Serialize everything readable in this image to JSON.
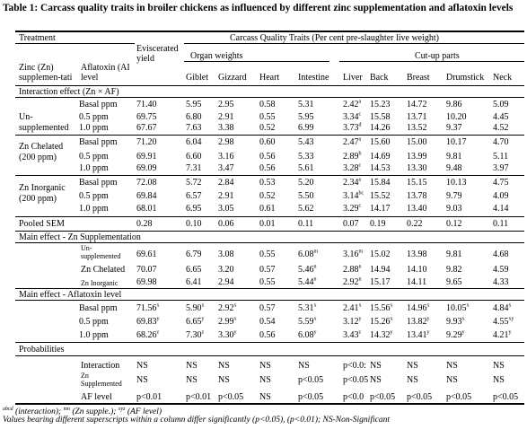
{
  "title": "Table 1: Carcass quality traits in broiler chickens as influenced by different zinc supplementation and aflatoxin levels",
  "head": {
    "treatment": "Treatment",
    "zinc_line1": "Zinc (Zn)",
    "zinc_line2": "supplemen-tati",
    "afla_line1": "Aflatoxin (AI",
    "afla_line2": "level",
    "evisc_line1": "Eviscerated",
    "evisc_line2": "yield",
    "cqt": "Carcass Quality Traits (Per cent pre-slaughter live weight)",
    "organ": "Organ weights",
    "cutup": "Cut-up parts",
    "giblet": "Giblet",
    "gizzard": "Gizzard",
    "heart": "Heart",
    "intestine": "Intestine",
    "liver": "Liver",
    "back": "Back",
    "breast": "Breast",
    "drumstick": "Drumstick",
    "neck": "Neck"
  },
  "section_interaction": "Interaction effect (Zn × AF)",
  "groups": [
    {
      "label1": "",
      "label2": "Un-",
      "label3": "supplemented"
    },
    {
      "label1": "Zn Chelated",
      "label2": "(200 ppm)",
      "label3": ""
    },
    {
      "label1": "Zn Inorganic",
      "label2": "(200 ppm)",
      "label3": ""
    }
  ],
  "interaction_rows": [
    {
      "af": "Basal ppm",
      "ey": "71.40",
      "giblet": "5.95",
      "gizzard": "2.95",
      "heart": "0.58",
      "intestine": "5.31",
      "liver": "2.42",
      "liver_sup": "a",
      "back": "15.23",
      "breast": "14.72",
      "drumstick": "9.86",
      "neck": "5.09"
    },
    {
      "af": "0.5 ppm",
      "ey": "69.75",
      "giblet": "6.80",
      "gizzard": "2.91",
      "heart": "0.55",
      "intestine": "5.95",
      "liver": "3.34",
      "liver_sup": "c",
      "back": "15.58",
      "breast": "13.71",
      "drumstick": "10.20",
      "neck": "4.45"
    },
    {
      "af": "1.0 ppm",
      "ey": "67.67",
      "giblet": "7.63",
      "gizzard": "3.38",
      "heart": "0.52",
      "intestine": "6.99",
      "liver": "3.73",
      "liver_sup": "d",
      "back": "14.26",
      "breast": "13.52",
      "drumstick": "9.37",
      "neck": "4.52"
    },
    {
      "af": "Basal ppm",
      "ey": "71.20",
      "giblet": "6.04",
      "gizzard": "2.98",
      "heart": "0.60",
      "intestine": "5.43",
      "liver": "2.47",
      "liver_sup": "a",
      "back": "15.60",
      "breast": "15.00",
      "drumstick": "10.17",
      "neck": "4.70"
    },
    {
      "af": "0.5 ppm",
      "ey": "69.91",
      "giblet": "6.60",
      "gizzard": "3.16",
      "heart": "0.56",
      "intestine": "5.33",
      "liver": "2.89",
      "liver_sup": "b",
      "back": "14.69",
      "breast": "13.99",
      "drumstick": "9.81",
      "neck": "5.11"
    },
    {
      "af": "1.0 ppm",
      "ey": "69.09",
      "giblet": "7.31",
      "gizzard": "3.47",
      "heart": "0.56",
      "intestine": "5.61",
      "liver": "3.28",
      "liver_sup": "c",
      "back": "14.53",
      "breast": "13.30",
      "drumstick": "9.48",
      "neck": "3.97"
    },
    {
      "af": "Basal ppm",
      "ey": "72.08",
      "giblet": "5.72",
      "gizzard": "2.84",
      "heart": "0.53",
      "intestine": "5.20",
      "liver": "2.34",
      "liver_sup": "a",
      "back": "15.84",
      "breast": "15.15",
      "drumstick": "10.13",
      "neck": "4.75"
    },
    {
      "af": "0.5 ppm",
      "ey": "69.84",
      "giblet": "6.57",
      "gizzard": "2.91",
      "heart": "0.52",
      "intestine": "5.50",
      "liver": "3.14",
      "liver_sup": "bc",
      "back": "15.52",
      "breast": "13.78",
      "drumstick": "9.79",
      "neck": "4.09"
    },
    {
      "af": "1.0 ppm",
      "ey": "68.01",
      "giblet": "6.95",
      "gizzard": "3.05",
      "heart": "0.61",
      "intestine": "5.62",
      "liver": "3.29",
      "liver_sup": "c",
      "back": "14.17",
      "breast": "13.40",
      "drumstick": "9.03",
      "neck": "4.14"
    }
  ],
  "pooled": {
    "label": "Pooled SEM",
    "ey": "0.28",
    "giblet": "0.10",
    "gizzard": "0.06",
    "heart": "0.01",
    "intestine": "0.11",
    "liver": "0.07",
    "back": "0.19",
    "breast": "0.22",
    "drumstick": "0.12",
    "neck": "0.11"
  },
  "section_zn": "Main effect - Zn Supplementation",
  "zn_rows": [
    {
      "label1": "Un-",
      "label2": "supplemented",
      "ey": "69.61",
      "giblet": "6.79",
      "gizzard": "3.08",
      "heart": "0.55",
      "intestine": "6.08",
      "intestine_sup": "m",
      "liver": "3.16",
      "liver_sup": "m",
      "back": "15.02",
      "breast": "13.98",
      "drumstick": "9.81",
      "neck": "4.68"
    },
    {
      "label1": "Zn Chelated",
      "label2": "",
      "ey": "70.07",
      "giblet": "6.65",
      "gizzard": "3.20",
      "heart": "0.57",
      "intestine": "5.46",
      "intestine_sup": "n",
      "liver": "2.88",
      "liver_sup": "n",
      "back": "14.94",
      "breast": "14.10",
      "drumstick": "9.82",
      "neck": "4.59"
    },
    {
      "label1": "Zn Inorganic",
      "label2": "",
      "ey": "69.98",
      "giblet": "6.41",
      "gizzard": "2.94",
      "heart": "0.55",
      "intestine": "5.44",
      "intestine_sup": "n",
      "liver": "2.92",
      "liver_sup": "n",
      "back": "15.17",
      "breast": "14.11",
      "drumstick": "9.65",
      "neck": "4.33"
    }
  ],
  "section_af": "Main effect - Aflatoxin level",
  "af_rows": [
    {
      "af": "Basal ppm",
      "ey": "71.56",
      "ey_sup": "x",
      "giblet": "5.90",
      "giblet_sup": "x",
      "gizzard": "2.92",
      "gizzard_sup": "x",
      "heart": "0.57",
      "intestine": "5.31",
      "intestine_sup": "x",
      "liver": "2.41",
      "liver_sup": "x",
      "back": "15.56",
      "back_sup": "x",
      "breast": "14.96",
      "breast_sup": "x",
      "drumstick": "10.05",
      "drumstick_sup": "x",
      "neck": "4.84",
      "neck_sup": "x"
    },
    {
      "af": "0.5 ppm",
      "ey": "69.83",
      "ey_sup": "y",
      "giblet": "6.65",
      "giblet_sup": "y",
      "gizzard": "2.99",
      "gizzard_sup": "x",
      "heart": "0.54",
      "intestine": "5.59",
      "intestine_sup": "x",
      "liver": "3.12",
      "liver_sup": "y",
      "back": "15.26",
      "back_sup": "x",
      "breast": "13.82",
      "breast_sup": "y",
      "drumstick": "9.93",
      "drumstick_sup": "x",
      "neck": "4.55",
      "neck_sup": "xy"
    },
    {
      "af": "1.0 ppm",
      "ey": "68.26",
      "ey_sup": "z",
      "giblet": "7.30",
      "giblet_sup": "z",
      "gizzard": "3.30",
      "gizzard_sup": "y",
      "heart": "0.56",
      "intestine": "6.08",
      "intestine_sup": "y",
      "liver": "3.43",
      "liver_sup": "z",
      "back": "14.32",
      "back_sup": "y",
      "breast": "13.41",
      "breast_sup": "y",
      "drumstick": "9.29",
      "drumstick_sup": "y",
      "neck": "4.21",
      "neck_sup": "y"
    }
  ],
  "section_prob": "Probabilities",
  "prob_rows": [
    {
      "label1": "Interaction",
      "label2": "",
      "ey": "NS",
      "giblet": "NS",
      "gizzard": "NS",
      "heart": "NS",
      "intestine": "NS",
      "liver": "p<0.0:",
      "back": "NS",
      "breast": "NS",
      "drumstick": "NS",
      "neck": "NS"
    },
    {
      "label1": "Zn",
      "label2": "Supplemented",
      "ey": "NS",
      "giblet": "NS",
      "gizzard": "NS",
      "heart": "NS",
      "intestine": "p<0.05",
      "liver": "p<0.05",
      "back": "NS",
      "breast": "NS",
      "drumstick": "NS",
      "neck": "NS"
    },
    {
      "label1": "AF level",
      "label2": "",
      "ey": "p<0.01",
      "giblet": "p<0.01",
      "gizzard": "p<0.05",
      "heart": "NS",
      "intestine": "p<0.05",
      "liver": "p<0.0",
      "back": "p<0.05",
      "breast": "p<0.05",
      "drumstick": "p<0.05",
      "neck": "p<0.05"
    }
  ],
  "footnote1_sup1": "abcd",
  "footnote1_a": "(interaction);",
  "footnote1_sup2": "mn",
  "footnote1_b": "(Zn supple.);",
  "footnote1_sup3": "xyz",
  "footnote1_c": "(AF level)",
  "footnote2": "Values bearing different superscripts within a column differ significantly (p<0.05), (p<0.01); NS-Non-Significant"
}
